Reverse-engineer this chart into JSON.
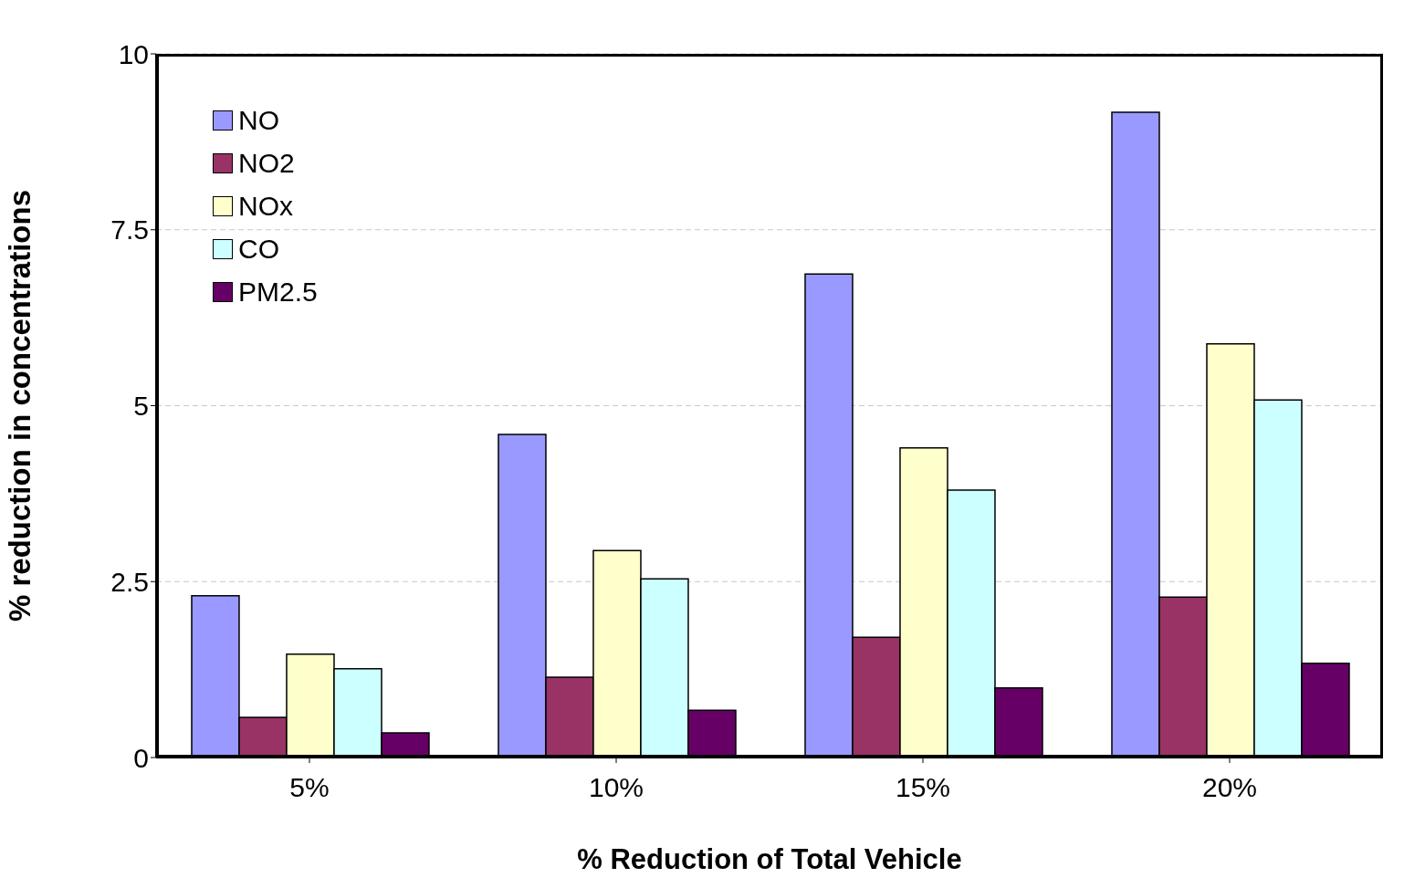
{
  "chart_data": {
    "type": "bar",
    "xlabel": "% Reduction of Total Vehicle",
    "ylabel": "% reduction in concentrations",
    "categories": [
      "5%",
      "10%",
      "15%",
      "20%"
    ],
    "series": [
      {
        "name": "NO",
        "color": "#9999ff",
        "values": [
          2.3,
          4.59,
          6.87,
          9.17
        ]
      },
      {
        "name": "NO2",
        "color": "#993366",
        "values": [
          0.57,
          1.14,
          1.71,
          2.28
        ]
      },
      {
        "name": "NOx",
        "color": "#ffffcc",
        "values": [
          1.47,
          2.94,
          4.4,
          5.88
        ]
      },
      {
        "name": "CO",
        "color": "#ccffff",
        "values": [
          1.26,
          2.54,
          3.8,
          5.08
        ]
      },
      {
        "name": "PM2.5",
        "color": "#660066",
        "values": [
          0.35,
          0.67,
          0.99,
          1.34
        ]
      }
    ],
    "ylim": [
      0,
      10
    ],
    "yticks": [
      0,
      2.5,
      5,
      7.5,
      10
    ],
    "grid": "y",
    "legend": "top left"
  }
}
